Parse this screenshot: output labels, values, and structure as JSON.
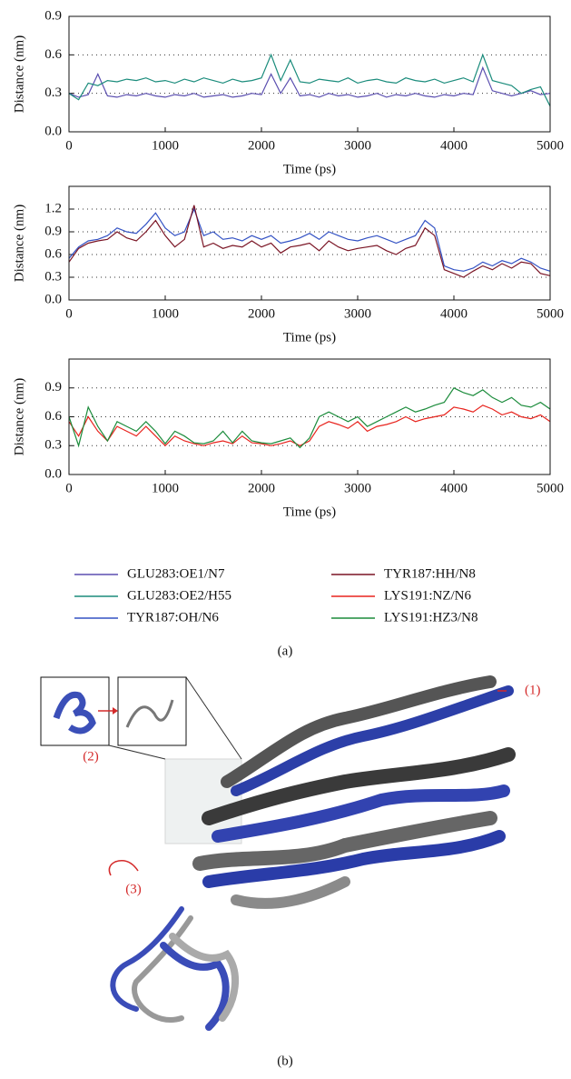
{
  "chart_data": [
    {
      "type": "line",
      "ylabel": "Distance (nm)",
      "xlabel": "Time (ps)",
      "x": [
        0,
        100,
        200,
        300,
        400,
        500,
        600,
        700,
        800,
        900,
        1000,
        1100,
        1200,
        1300,
        1400,
        1500,
        1600,
        1700,
        1800,
        1900,
        2000,
        2100,
        2200,
        2300,
        2400,
        2500,
        2600,
        2700,
        2800,
        2900,
        3000,
        3100,
        3200,
        3300,
        3400,
        3500,
        3600,
        3700,
        3800,
        3900,
        4000,
        4100,
        4200,
        4300,
        4400,
        4500,
        4600,
        4700,
        4800,
        4900,
        5000
      ],
      "xlim": [
        0,
        5000
      ],
      "xticks": [
        0,
        1000,
        2000,
        3000,
        4000,
        5000
      ],
      "ylim": [
        0,
        0.9
      ],
      "yticks": [
        {
          "value": 0,
          "label": "0.0"
        },
        0.3,
        0.6,
        0.9
      ],
      "grid": true,
      "series": [
        {
          "name": "GLU283:OE1/N7",
          "color": "#5b4fb0",
          "values": [
            0.3,
            0.27,
            0.29,
            0.45,
            0.28,
            0.27,
            0.29,
            0.28,
            0.3,
            0.28,
            0.27,
            0.29,
            0.28,
            0.3,
            0.27,
            0.28,
            0.29,
            0.27,
            0.28,
            0.3,
            0.29,
            0.45,
            0.3,
            0.42,
            0.28,
            0.29,
            0.27,
            0.3,
            0.28,
            0.29,
            0.27,
            0.28,
            0.3,
            0.27,
            0.29,
            0.28,
            0.3,
            0.28,
            0.27,
            0.29,
            0.28,
            0.3,
            0.29,
            0.5,
            0.32,
            0.3,
            0.28,
            0.3,
            0.32,
            0.29,
            0.3
          ]
        },
        {
          "name": "GLU283:OE2/H55",
          "color": "#1b8c7c",
          "values": [
            0.3,
            0.25,
            0.38,
            0.36,
            0.4,
            0.39,
            0.41,
            0.4,
            0.42,
            0.39,
            0.4,
            0.38,
            0.41,
            0.39,
            0.42,
            0.4,
            0.38,
            0.41,
            0.39,
            0.4,
            0.42,
            0.6,
            0.4,
            0.56,
            0.39,
            0.38,
            0.41,
            0.4,
            0.39,
            0.42,
            0.38,
            0.4,
            0.41,
            0.39,
            0.38,
            0.42,
            0.4,
            0.39,
            0.41,
            0.38,
            0.4,
            0.42,
            0.39,
            0.6,
            0.4,
            0.38,
            0.36,
            0.3,
            0.33,
            0.35,
            0.2
          ]
        }
      ]
    },
    {
      "type": "line",
      "ylabel": "Distance (nm)",
      "xlabel": "Time (ps)",
      "x": [
        0,
        100,
        200,
        300,
        400,
        500,
        600,
        700,
        800,
        900,
        1000,
        1100,
        1200,
        1300,
        1400,
        1500,
        1600,
        1700,
        1800,
        1900,
        2000,
        2100,
        2200,
        2300,
        2400,
        2500,
        2600,
        2700,
        2800,
        2900,
        3000,
        3100,
        3200,
        3300,
        3400,
        3500,
        3600,
        3700,
        3800,
        3900,
        4000,
        4100,
        4200,
        4300,
        4400,
        4500,
        4600,
        4700,
        4800,
        4900,
        5000
      ],
      "xlim": [
        0,
        5000
      ],
      "xticks": [
        0,
        1000,
        2000,
        3000,
        4000,
        5000
      ],
      "ylim": [
        0,
        1.5
      ],
      "yticks": [
        {
          "value": 0,
          "label": "0.0"
        },
        0.3,
        0.6,
        0.9,
        1.2
      ],
      "grid": true,
      "series": [
        {
          "name": "TYR187:OH/N6",
          "color": "#3352c4",
          "values": [
            0.55,
            0.7,
            0.78,
            0.8,
            0.85,
            0.95,
            0.9,
            0.88,
            1.0,
            1.15,
            0.95,
            0.85,
            0.9,
            1.2,
            0.85,
            0.9,
            0.8,
            0.82,
            0.78,
            0.85,
            0.8,
            0.85,
            0.75,
            0.78,
            0.82,
            0.88,
            0.8,
            0.9,
            0.85,
            0.8,
            0.78,
            0.82,
            0.85,
            0.8,
            0.75,
            0.8,
            0.85,
            1.05,
            0.95,
            0.45,
            0.4,
            0.38,
            0.42,
            0.5,
            0.45,
            0.52,
            0.48,
            0.55,
            0.5,
            0.42,
            0.38
          ]
        },
        {
          "name": "TYR187:HH/N8",
          "color": "#7a1424",
          "values": [
            0.5,
            0.68,
            0.75,
            0.78,
            0.8,
            0.9,
            0.82,
            0.78,
            0.9,
            1.05,
            0.85,
            0.7,
            0.8,
            1.25,
            0.7,
            0.75,
            0.68,
            0.72,
            0.7,
            0.78,
            0.7,
            0.75,
            0.62,
            0.7,
            0.72,
            0.75,
            0.65,
            0.78,
            0.7,
            0.65,
            0.68,
            0.7,
            0.72,
            0.65,
            0.6,
            0.68,
            0.72,
            0.95,
            0.85,
            0.4,
            0.35,
            0.3,
            0.38,
            0.45,
            0.4,
            0.48,
            0.42,
            0.5,
            0.48,
            0.35,
            0.32
          ]
        }
      ]
    },
    {
      "type": "line",
      "ylabel": "Distance (nm)",
      "xlabel": "Time (ps)",
      "x": [
        0,
        100,
        200,
        300,
        400,
        500,
        600,
        700,
        800,
        900,
        1000,
        1100,
        1200,
        1300,
        1400,
        1500,
        1600,
        1700,
        1800,
        1900,
        2000,
        2100,
        2200,
        2300,
        2400,
        2500,
        2600,
        2700,
        2800,
        2900,
        3000,
        3100,
        3200,
        3300,
        3400,
        3500,
        3600,
        3700,
        3800,
        3900,
        4000,
        4100,
        4200,
        4300,
        4400,
        4500,
        4600,
        4700,
        4800,
        4900,
        5000
      ],
      "xlim": [
        0,
        5000
      ],
      "xticks": [
        0,
        1000,
        2000,
        3000,
        4000,
        5000
      ],
      "ylim": [
        0,
        1.2
      ],
      "yticks": [
        {
          "value": 0,
          "label": "0.0"
        },
        0.3,
        0.6,
        0.9
      ],
      "grid": true,
      "series": [
        {
          "name": "LYS191:NZ/N6",
          "color": "#e8241e",
          "values": [
            0.55,
            0.4,
            0.6,
            0.45,
            0.35,
            0.5,
            0.45,
            0.4,
            0.5,
            0.4,
            0.3,
            0.4,
            0.35,
            0.32,
            0.3,
            0.33,
            0.35,
            0.32,
            0.4,
            0.33,
            0.32,
            0.3,
            0.32,
            0.35,
            0.3,
            0.35,
            0.5,
            0.55,
            0.52,
            0.48,
            0.55,
            0.45,
            0.5,
            0.52,
            0.55,
            0.6,
            0.55,
            0.58,
            0.6,
            0.62,
            0.7,
            0.68,
            0.65,
            0.72,
            0.68,
            0.62,
            0.65,
            0.6,
            0.58,
            0.62,
            0.55
          ]
        },
        {
          "name": "LYS191:HZ3/N8",
          "color": "#1c8c3c",
          "values": [
            0.6,
            0.3,
            0.7,
            0.5,
            0.35,
            0.55,
            0.5,
            0.45,
            0.55,
            0.45,
            0.32,
            0.45,
            0.4,
            0.33,
            0.32,
            0.35,
            0.45,
            0.33,
            0.45,
            0.35,
            0.33,
            0.32,
            0.35,
            0.38,
            0.28,
            0.38,
            0.6,
            0.65,
            0.6,
            0.55,
            0.6,
            0.5,
            0.55,
            0.6,
            0.65,
            0.7,
            0.65,
            0.68,
            0.72,
            0.75,
            0.9,
            0.85,
            0.82,
            0.88,
            0.8,
            0.75,
            0.8,
            0.72,
            0.7,
            0.75,
            0.68
          ]
        }
      ]
    }
  ],
  "panel_labels": [
    "(a)",
    "(b)"
  ],
  "annotations": [
    "(1)",
    "(2)",
    "(3)"
  ]
}
